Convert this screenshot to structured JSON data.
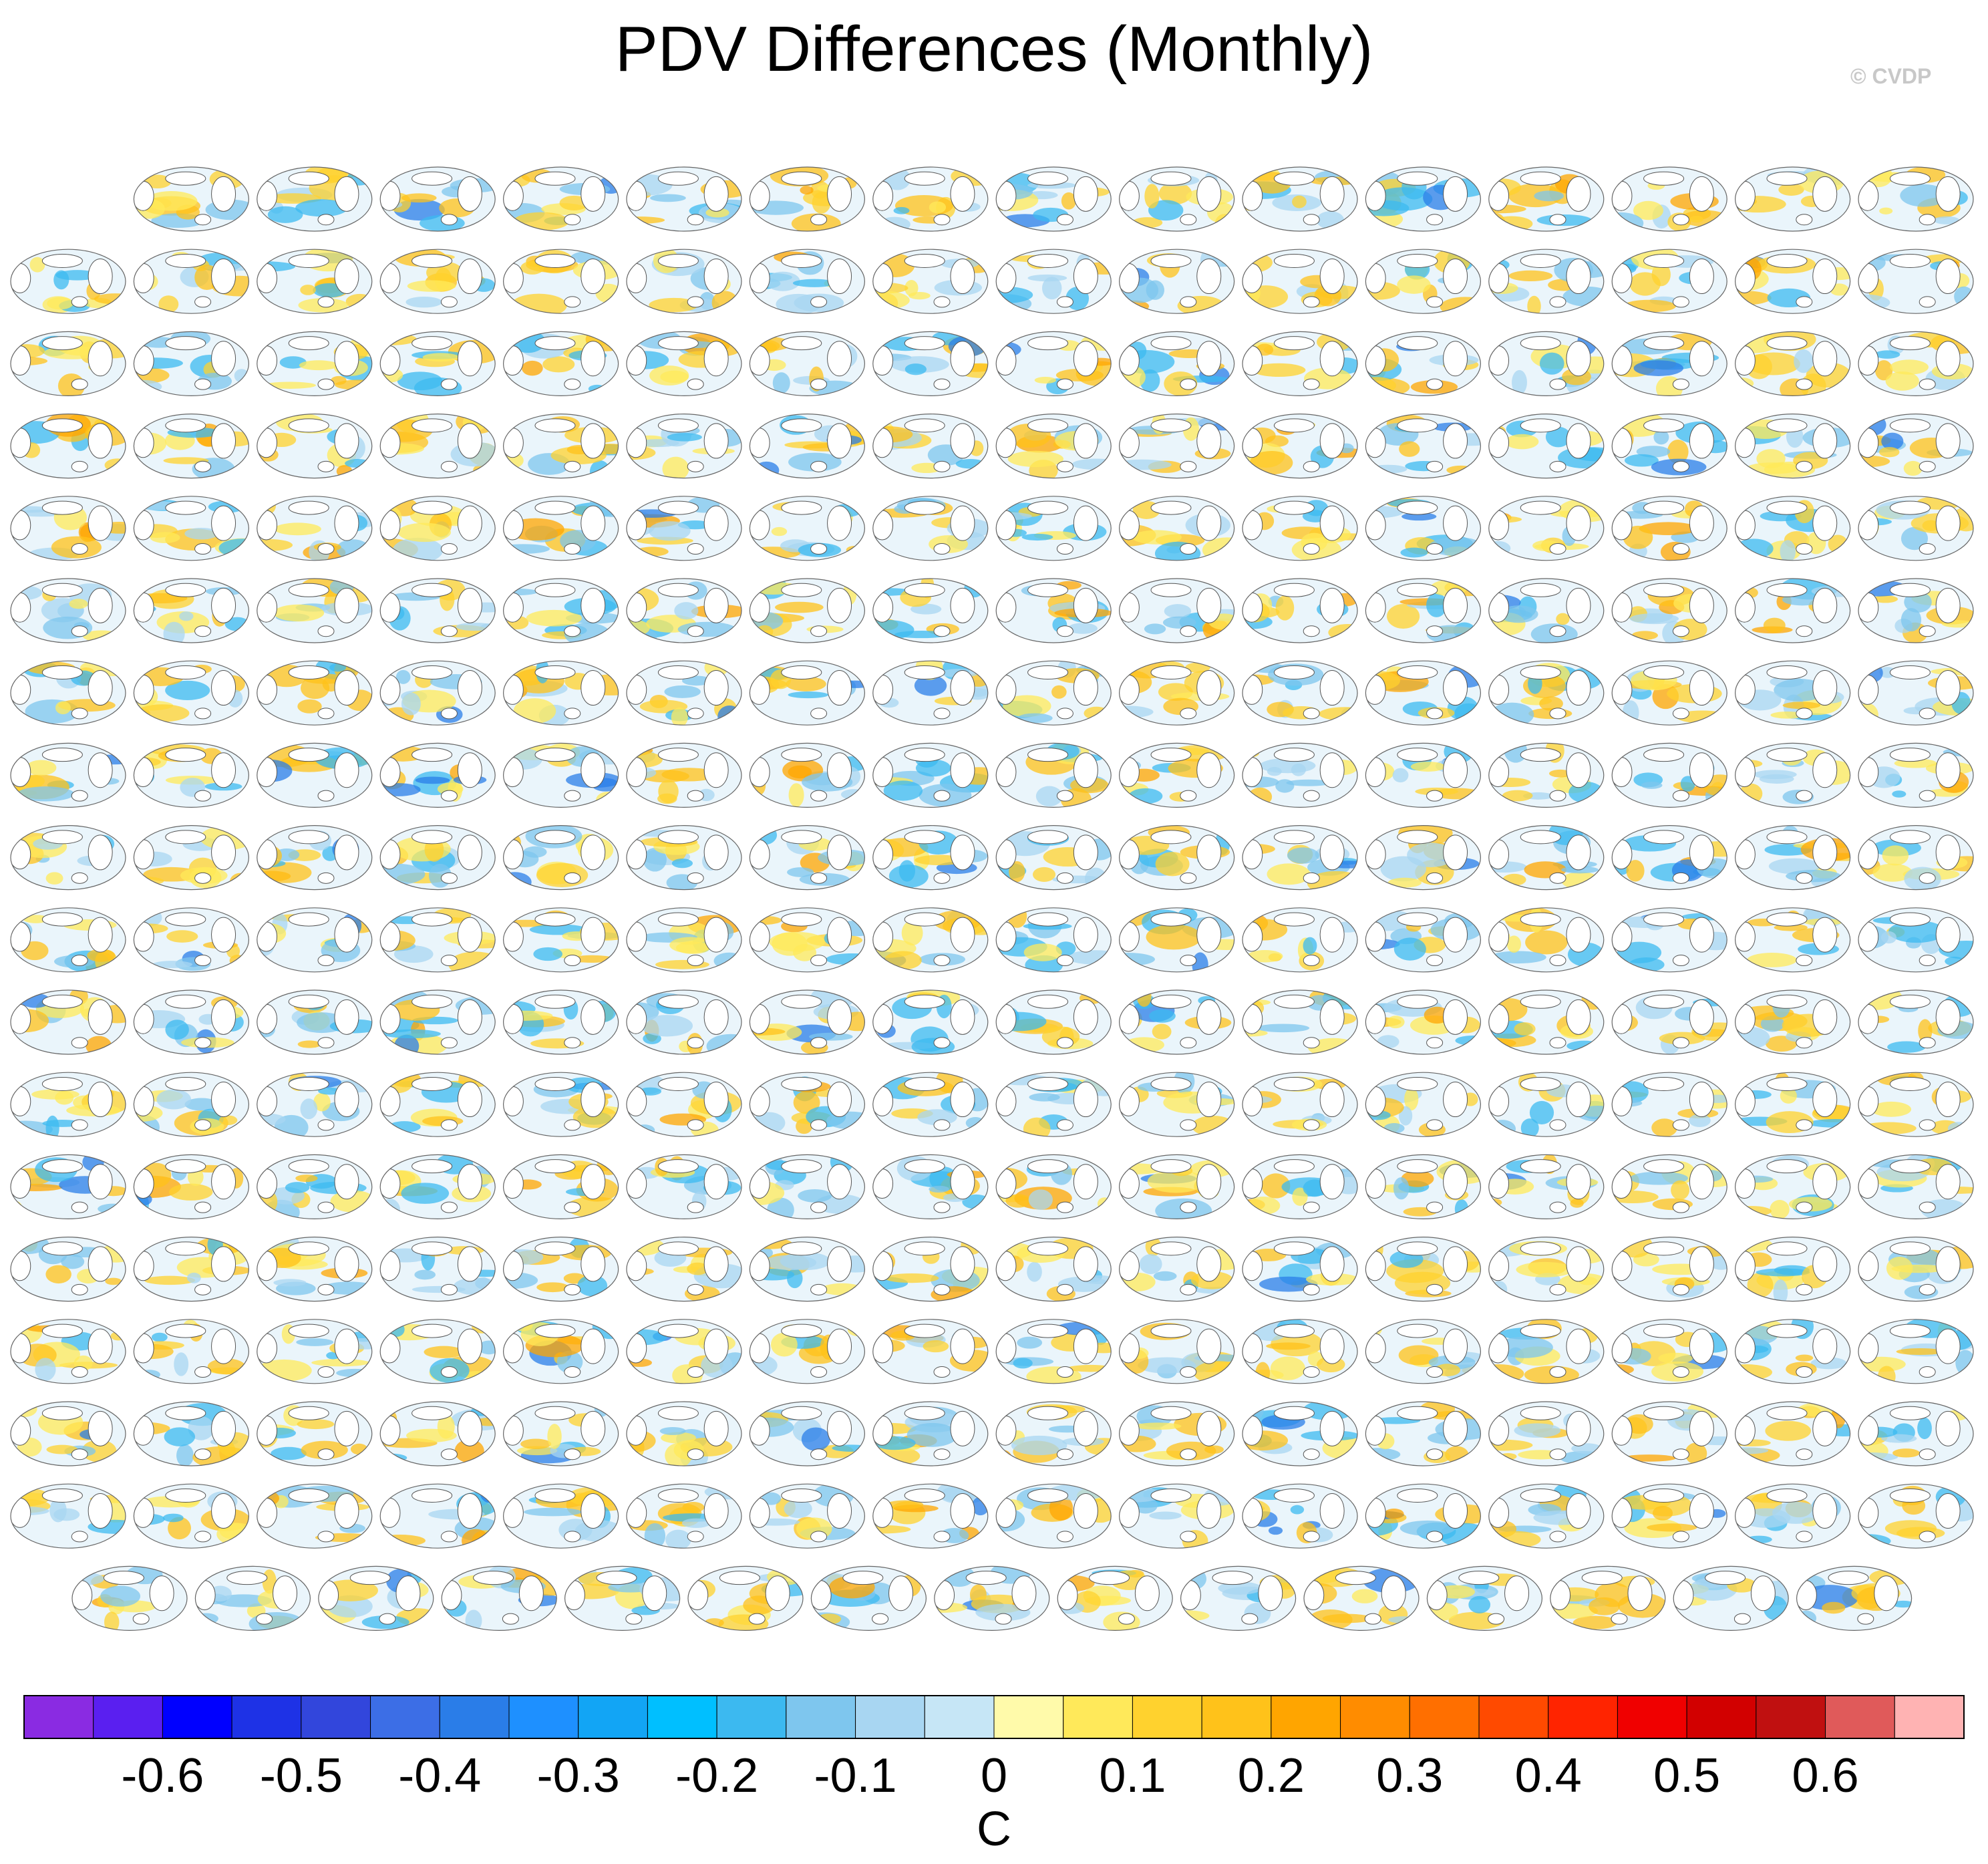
{
  "title": "PDV Differences (Monthly)",
  "copyright": "© CVDP",
  "chart_data": {
    "type": "heatmap",
    "title": "PDV Differences (Monthly)",
    "colorbar": {
      "unit_label": "C",
      "tick_labels": [
        "-0.6",
        "-0.5",
        "-0.4",
        "-0.3",
        "-0.2",
        "-0.1",
        "0",
        "0.1",
        "0.2",
        "0.3",
        "0.4",
        "0.5",
        "0.6"
      ],
      "colors": [
        "#8a2be2",
        "#5a1ff0",
        "#0000ff",
        "#1e32e6",
        "#3246dc",
        "#3c6ee6",
        "#2a7de8",
        "#1e90ff",
        "#12a5f5",
        "#00bfff",
        "#3cb9f0",
        "#7ec6ee",
        "#a8d6f2",
        "#c6e6f6",
        "#fffaaa",
        "#ffe95a",
        "#ffd22e",
        "#ffc21a",
        "#ffa500",
        "#ff8c00",
        "#ff6f00",
        "#ff4a00",
        "#ff2400",
        "#f00000",
        "#d20000",
        "#c01010",
        "#e05a5a",
        "#ffb3b3"
      ]
    },
    "grid": {
      "rows": 18,
      "cols": 16,
      "panel_count": 286
    }
  }
}
